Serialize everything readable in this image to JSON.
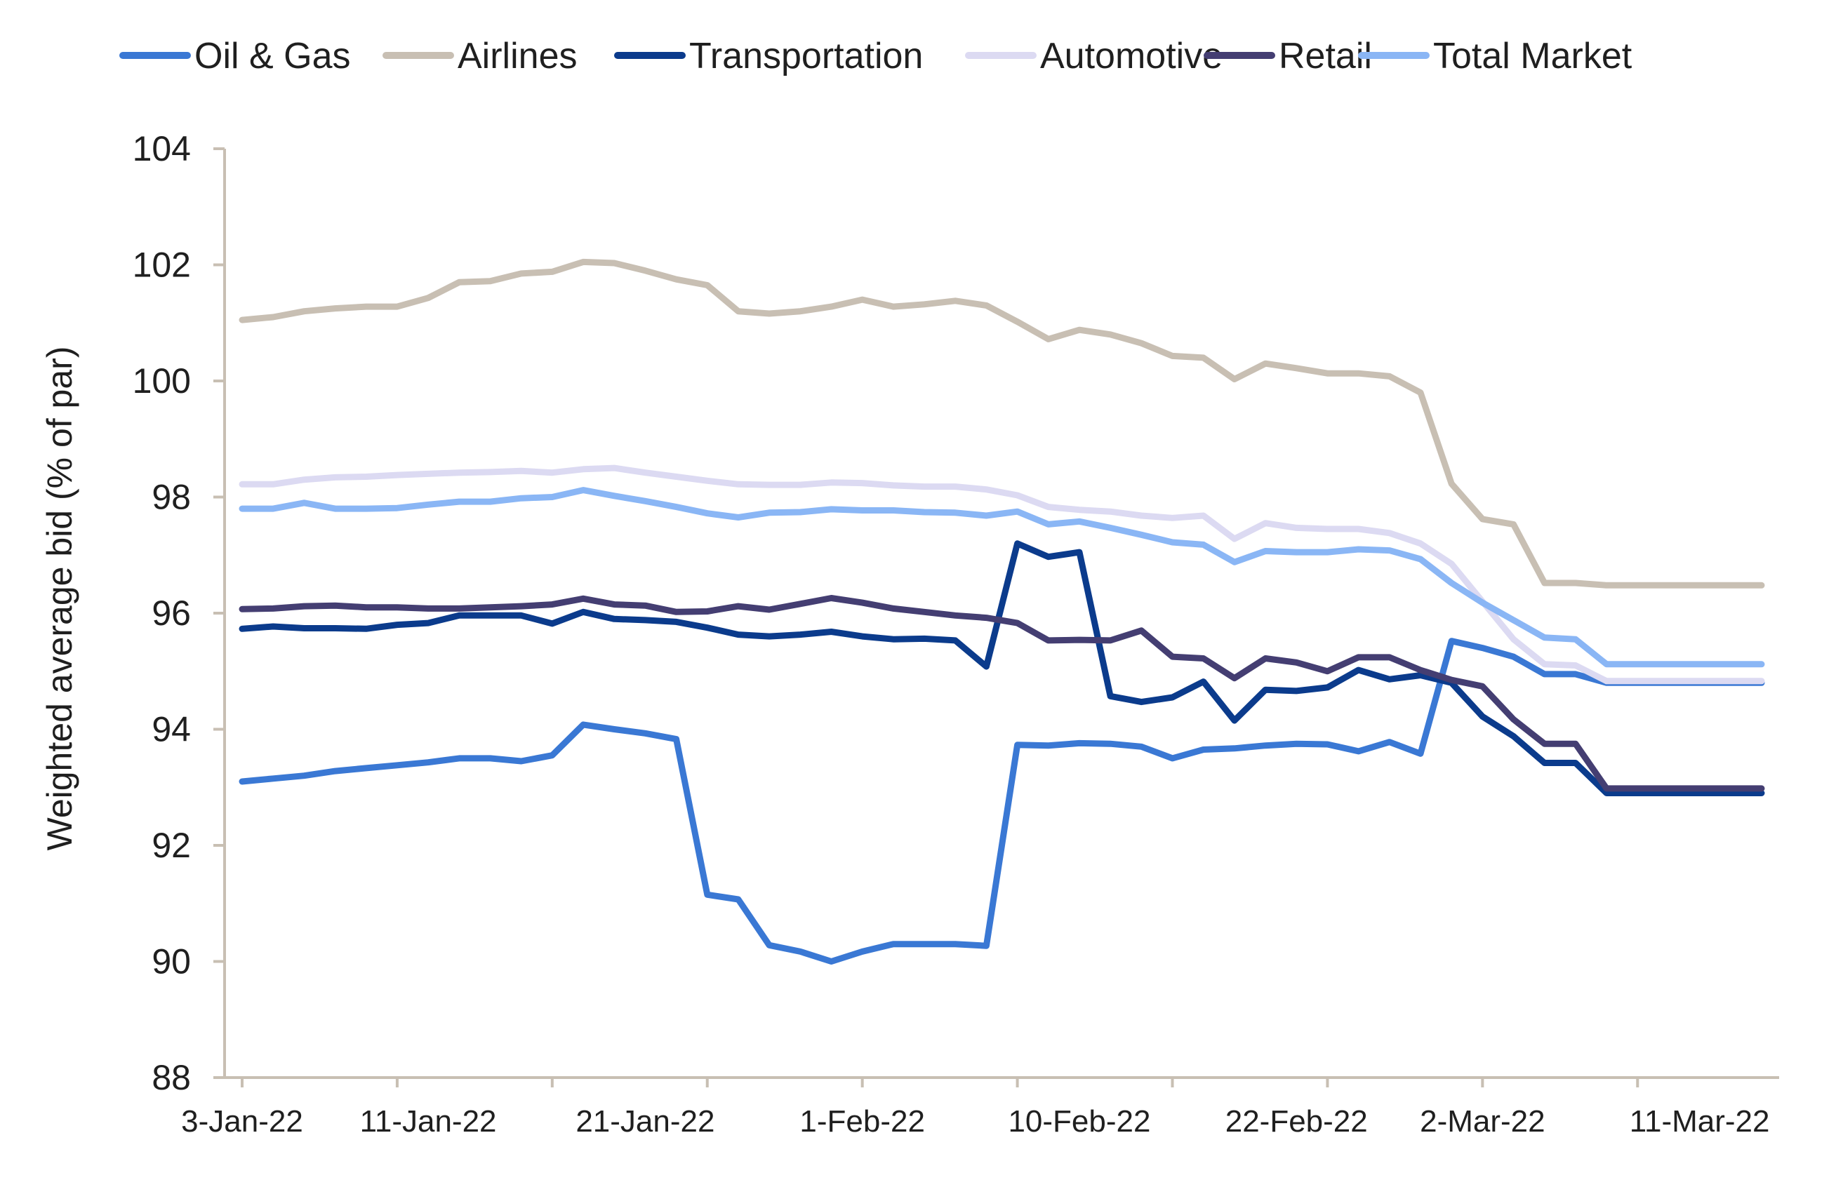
{
  "chart_data": {
    "type": "line",
    "title": "",
    "xlabel": "",
    "ylabel": "Weighted average bid (% of par)",
    "ylim": [
      88,
      104
    ],
    "yticks": [
      "88",
      "90",
      "92",
      "94",
      "96",
      "98",
      "100",
      "102",
      "104"
    ],
    "xtick_labels": [
      "3-Jan-22",
      "11-Jan-22",
      "21-Jan-22",
      "1-Feb-22",
      "10-Feb-22",
      "22-Feb-22",
      "2-Mar-22",
      "11-Mar-22"
    ],
    "legend_position": "top",
    "grid": false,
    "x": [
      "3-Jan-22",
      "4-Jan-22",
      "5-Jan-22",
      "6-Jan-22",
      "7-Jan-22",
      "10-Jan-22",
      "11-Jan-22",
      "12-Jan-22",
      "13-Jan-22",
      "14-Jan-22",
      "18-Jan-22",
      "19-Jan-22",
      "20-Jan-22",
      "21-Jan-22",
      "24-Jan-22",
      "25-Jan-22",
      "26-Jan-22",
      "27-Jan-22",
      "28-Jan-22",
      "31-Jan-22",
      "1-Feb-22",
      "2-Feb-22",
      "3-Feb-22",
      "4-Feb-22",
      "7-Feb-22",
      "8-Feb-22",
      "9-Feb-22",
      "10-Feb-22",
      "11-Feb-22",
      "14-Feb-22",
      "15-Feb-22",
      "16-Feb-22",
      "17-Feb-22",
      "18-Feb-22",
      "22-Feb-22",
      "23-Feb-22",
      "24-Feb-22",
      "25-Feb-22",
      "28-Feb-22",
      "1-Mar-22",
      "2-Mar-22",
      "3-Mar-22",
      "4-Mar-22",
      "7-Mar-22",
      "8-Mar-22",
      "9-Mar-22",
      "10-Mar-22",
      "11-Mar-22",
      "14-Mar-22",
      "15-Mar-22"
    ],
    "series": [
      {
        "name": "Oil & Gas",
        "color": "#3a78d4",
        "values": [
          93.1,
          93.15,
          93.2,
          93.28,
          93.33,
          93.38,
          93.43,
          93.5,
          93.5,
          93.45,
          93.55,
          94.08,
          94.0,
          93.93,
          93.83,
          91.15,
          91.07,
          90.28,
          90.17,
          90.0,
          90.17,
          90.3,
          90.3,
          90.3,
          90.27,
          93.73,
          93.72,
          93.76,
          93.75,
          93.7,
          93.5,
          93.65,
          93.67,
          93.72,
          93.75,
          93.74,
          93.62,
          93.78,
          93.58,
          95.52,
          95.4,
          95.25,
          94.95,
          94.95,
          94.8,
          94.8,
          94.8,
          94.8,
          94.8,
          94.8
        ]
      },
      {
        "name": "Airlines",
        "color": "#c8bfb3",
        "values": [
          101.05,
          101.1,
          101.2,
          101.25,
          101.28,
          101.28,
          101.43,
          101.7,
          101.72,
          101.85,
          101.88,
          102.05,
          102.03,
          101.9,
          101.75,
          101.65,
          101.2,
          101.16,
          101.2,
          101.28,
          101.4,
          101.28,
          101.32,
          101.38,
          101.3,
          101.02,
          100.72,
          100.88,
          100.8,
          100.65,
          100.43,
          100.4,
          100.03,
          100.3,
          100.22,
          100.13,
          100.13,
          100.08,
          99.8,
          98.23,
          97.62,
          97.53,
          96.52,
          96.52,
          96.48,
          96.48,
          96.48,
          96.48,
          96.48,
          96.48
        ]
      },
      {
        "name": "Transportation",
        "color": "#0b3b8c",
        "values": [
          95.73,
          95.77,
          95.74,
          95.74,
          95.73,
          95.8,
          95.83,
          95.96,
          95.96,
          95.96,
          95.82,
          96.02,
          95.9,
          95.88,
          95.85,
          95.75,
          95.63,
          95.6,
          95.63,
          95.68,
          95.6,
          95.55,
          95.56,
          95.53,
          95.08,
          97.2,
          96.97,
          97.05,
          94.57,
          94.47,
          94.55,
          94.82,
          94.15,
          94.68,
          94.66,
          94.72,
          95.02,
          94.86,
          94.93,
          94.8,
          94.22,
          93.88,
          93.42,
          93.42,
          92.9,
          92.9,
          92.9,
          92.9,
          92.9,
          92.9
        ]
      },
      {
        "name": "Automotive",
        "color": "#dcdaf2",
        "values": [
          98.22,
          98.22,
          98.3,
          98.34,
          98.35,
          98.38,
          98.4,
          98.42,
          98.43,
          98.45,
          98.42,
          98.48,
          98.5,
          98.42,
          98.35,
          98.28,
          98.22,
          98.21,
          98.21,
          98.25,
          98.24,
          98.2,
          98.18,
          98.18,
          98.13,
          98.03,
          97.83,
          97.78,
          97.75,
          97.68,
          97.64,
          97.68,
          97.28,
          97.55,
          97.47,
          97.45,
          97.45,
          97.38,
          97.2,
          96.85,
          96.2,
          95.55,
          95.12,
          95.1,
          94.83,
          94.83,
          94.83,
          94.83,
          94.83,
          94.83
        ]
      },
      {
        "name": "Retail",
        "color": "#443e72",
        "values": [
          96.07,
          96.08,
          96.12,
          96.13,
          96.1,
          96.1,
          96.08,
          96.08,
          96.1,
          96.12,
          96.15,
          96.25,
          96.15,
          96.13,
          96.02,
          96.03,
          96.12,
          96.06,
          96.16,
          96.26,
          96.18,
          96.08,
          96.02,
          95.96,
          95.92,
          95.83,
          95.53,
          95.54,
          95.53,
          95.7,
          95.25,
          95.22,
          94.88,
          95.22,
          95.15,
          95.0,
          95.24,
          95.24,
          95.02,
          94.85,
          94.74,
          94.17,
          93.75,
          93.75,
          92.98,
          92.98,
          92.98,
          92.98,
          92.98,
          92.98
        ]
      },
      {
        "name": "Total Market",
        "color": "#8ab6f5",
        "values": [
          97.8,
          97.8,
          97.9,
          97.8,
          97.8,
          97.81,
          97.87,
          97.92,
          97.92,
          97.98,
          98.0,
          98.12,
          98.02,
          97.93,
          97.83,
          97.72,
          97.65,
          97.73,
          97.74,
          97.79,
          97.77,
          97.77,
          97.74,
          97.73,
          97.68,
          97.75,
          97.53,
          97.58,
          97.47,
          97.35,
          97.22,
          97.18,
          96.88,
          97.07,
          97.05,
          97.05,
          97.1,
          97.08,
          96.93,
          96.52,
          96.18,
          95.88,
          95.58,
          95.55,
          95.12,
          95.12,
          95.12,
          95.12,
          95.12,
          95.12
        ]
      }
    ]
  }
}
